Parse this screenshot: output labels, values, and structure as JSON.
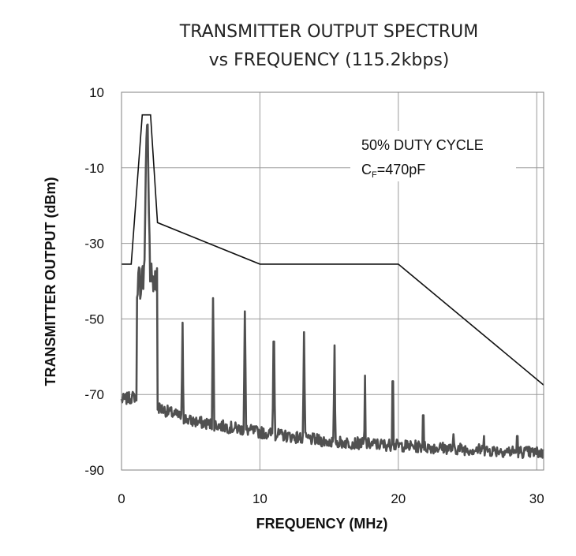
{
  "chart_data": {
    "type": "line",
    "title": "TRANSMITTER OUTPUT SPECTRUM",
    "subtitle": "vs FREQUENCY (115.2kbps)",
    "xlabel": "FREQUENCY (MHz)",
    "ylabel": "TRANSMITTER OUTPUT (dBm)",
    "xlim": [
      0,
      30.5
    ],
    "ylim": [
      -90,
      10
    ],
    "xticks": [
      "0",
      "10",
      "20",
      "30"
    ],
    "yticks": [
      "10",
      "-10",
      "-30",
      "-50",
      "-70",
      "-90"
    ],
    "grid": true,
    "annotation": {
      "line1": "50% DUTY CYCLE",
      "line2_main": "C",
      "line2_sub": "F",
      "line2_rest": "=470pF"
    },
    "series": [
      {
        "role": "mask",
        "x": [
          0,
          0.7,
          1.5,
          1.8,
          2.1,
          2.6,
          10,
          20,
          30.5
        ],
        "y": [
          -35.5,
          -35.5,
          4,
          4,
          4,
          -24.5,
          -35.5,
          -35.5,
          -67.5
        ]
      },
      {
        "role": "spectrum",
        "noise_floor": {
          "x": [
            0,
            1.0,
            3,
            5,
            10,
            15,
            20,
            25,
            30.5
          ],
          "y": [
            -71.5,
            -70.5,
            -74,
            -77,
            -80,
            -82.5,
            -83.5,
            -84.5,
            -85.5
          ]
        },
        "carrier": {
          "x": 1.85,
          "peak": 4,
          "floor_near": -40
        },
        "harmonics": [
          {
            "x": 4.4,
            "peak": -51
          },
          {
            "x": 6.6,
            "peak": -44.5
          },
          {
            "x": 8.9,
            "peak": -48
          },
          {
            "x": 11.0,
            "peak": -56
          },
          {
            "x": 13.2,
            "peak": -53.5
          },
          {
            "x": 15.4,
            "peak": -57
          },
          {
            "x": 17.6,
            "peak": -65
          },
          {
            "x": 19.6,
            "peak": -66.5
          },
          {
            "x": 21.8,
            "peak": -75.5
          },
          {
            "x": 24.0,
            "peak": -80.5
          },
          {
            "x": 26.2,
            "peak": -81
          },
          {
            "x": 28.6,
            "peak": -81
          }
        ]
      }
    ]
  },
  "colors": {
    "mask": "#111111",
    "spectrum": "#505050",
    "grid": "#9a9a9a",
    "frame": "#808080"
  }
}
